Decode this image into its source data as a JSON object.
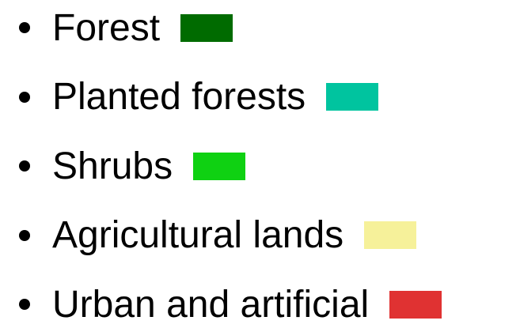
{
  "items": [
    {
      "label": "Forest",
      "color": "#006b00"
    },
    {
      "label": "Planted forests",
      "color": "#00c49f"
    },
    {
      "label": "Shrubs",
      "color": "#0fd112"
    },
    {
      "label": "Agricultural lands",
      "color": "#f6f19a"
    },
    {
      "label": "Urban and artificial",
      "color": "#e03232"
    }
  ]
}
